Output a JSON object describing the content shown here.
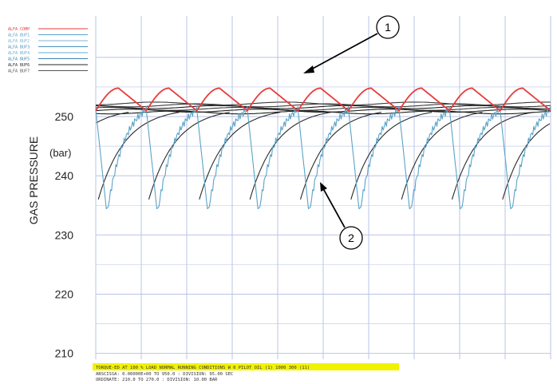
{
  "chart_data": {
    "type": "line",
    "title": "",
    "xlabel": "",
    "ylabel": "GAS PRESSURE",
    "yunit": "(bar)",
    "ylim": [
      209,
      267
    ],
    "yticks": [
      210,
      220,
      230,
      240,
      250
    ],
    "xlim": [
      0,
      10
    ],
    "grid": true,
    "legend_position": "top-left",
    "colors": {
      "comp": "#e83b3b",
      "accumulator": "#5aa3c8",
      "accumulator_alt": "#2a2a2a",
      "grid": "#b9c4e6",
      "footer_highlight": "#f2f200"
    },
    "legend": [
      {
        "label": "ALFA COMP",
        "color": "#e83b3b"
      },
      {
        "label": "ALFA BUF1",
        "color": "#5aa3c8"
      },
      {
        "label": "ALFA BUF2",
        "color": "#7bb6d6"
      },
      {
        "label": "ALFA BUF3",
        "color": "#4a90bd"
      },
      {
        "label": "ALFA BUF4",
        "color": "#6aaed0"
      },
      {
        "label": "ALFA BUF5",
        "color": "#3d84b3"
      },
      {
        "label": "ALFA BUF6",
        "color": "#2a2a2a"
      },
      {
        "label": "ALFA BUF7",
        "color": "#555555"
      }
    ],
    "series_description": {
      "comp_cycle_count": 9,
      "comp_peak": 254.8,
      "comp_trough": 251.0,
      "buffer_peak": 251.2,
      "buffer_trough": 233.5,
      "recovery_curve_start": 236.0,
      "recovery_curve_end": 251.5
    },
    "annotations": [
      {
        "label": "1",
        "target": "red pressure curve"
      },
      {
        "label": "2",
        "target": "blue buffer curve"
      }
    ],
    "footer_lines": [
      "TORQUE-ED AT 100 % LOAD  NORMAL RUNNING CONDITIONS  W 0 PILOT OIL     (1)          1000  300 (11)",
      "ABSCISSA: 0.00000E+00 TO 950.0  : DIVISION: 95.00   SEC",
      "ORDINATE: 210.0       TO 270.0  : DIVISION: 10.00   BAR"
    ]
  }
}
